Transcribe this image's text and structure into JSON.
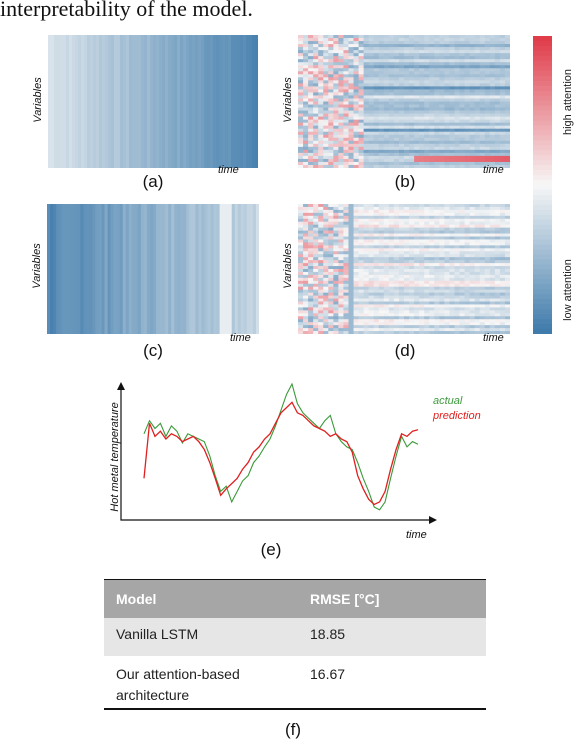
{
  "header_text": "interpretability of the model.",
  "panels": [
    {
      "id": "a",
      "label": "(a)",
      "ylabel": "Variables",
      "xlabel": "time"
    },
    {
      "id": "b",
      "label": "(b)",
      "ylabel": "Variables",
      "xlabel": "time"
    },
    {
      "id": "c",
      "label": "(c)",
      "ylabel": "Variables",
      "xlabel": "time"
    },
    {
      "id": "d",
      "label": "(d)",
      "ylabel": "Variables",
      "xlabel": "time"
    }
  ],
  "colorbar": {
    "high_label": "high attention",
    "low_label": "low attention",
    "colors": {
      "high": "#e03c4a",
      "mid": "#f7f7f7",
      "low": "#3f7bab"
    }
  },
  "chart_data": {
    "type": "line",
    "label": "(e)",
    "title": "",
    "xlabel": "time",
    "ylabel": "Hot metal temperature",
    "series": [
      {
        "name": "actual",
        "color": "#3a9a3a",
        "values": [
          0.62,
          0.72,
          0.66,
          0.7,
          0.6,
          0.68,
          0.64,
          0.55,
          0.62,
          0.6,
          0.58,
          0.56,
          0.45,
          0.3,
          0.18,
          0.22,
          0.1,
          0.18,
          0.26,
          0.3,
          0.4,
          0.45,
          0.52,
          0.58,
          0.68,
          0.8,
          0.92,
          1.0,
          0.85,
          0.78,
          0.74,
          0.7,
          0.66,
          0.72,
          0.76,
          0.62,
          0.56,
          0.52,
          0.5,
          0.4,
          0.28,
          0.18,
          0.06,
          0.04,
          0.1,
          0.28,
          0.45,
          0.6,
          0.52,
          0.56,
          0.54
        ]
      },
      {
        "name": "prediction",
        "color": "#e02020",
        "values": [
          0.28,
          0.7,
          0.6,
          0.64,
          0.58,
          0.62,
          0.6,
          0.56,
          0.58,
          0.6,
          0.56,
          0.5,
          0.4,
          0.28,
          0.15,
          0.2,
          0.24,
          0.28,
          0.35,
          0.4,
          0.48,
          0.52,
          0.58,
          0.62,
          0.7,
          0.78,
          0.82,
          0.86,
          0.78,
          0.76,
          0.72,
          0.68,
          0.66,
          0.64,
          0.6,
          0.62,
          0.58,
          0.56,
          0.48,
          0.3,
          0.2,
          0.12,
          0.08,
          0.1,
          0.18,
          0.35,
          0.5,
          0.62,
          0.6,
          0.64,
          0.65
        ]
      }
    ],
    "grid": false,
    "legend": "top-right"
  },
  "table": {
    "label": "(f)",
    "headers": [
      "Model",
      "RMSE [°C]"
    ],
    "rows": [
      [
        "Vanilla LSTM",
        "18.85"
      ],
      [
        "Our attention-based architecture",
        "16.67"
      ]
    ]
  }
}
